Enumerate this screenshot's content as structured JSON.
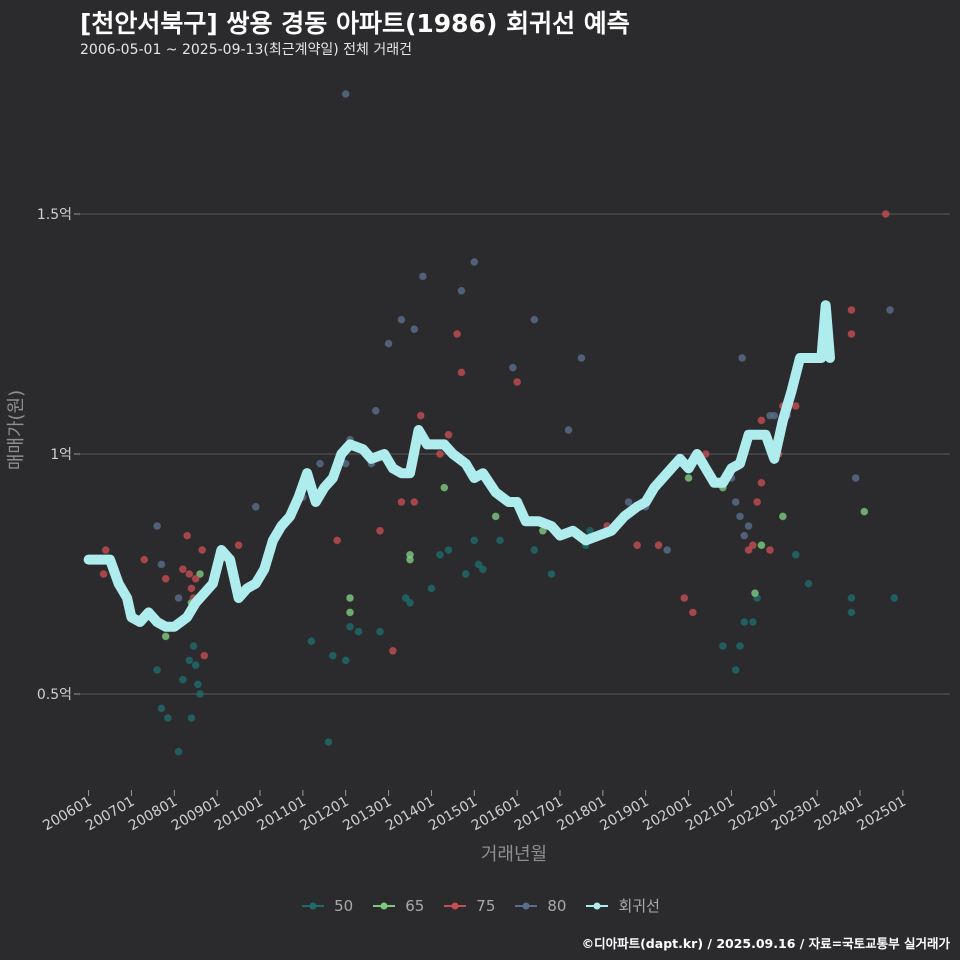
{
  "title": "[천안서북구] 쌍용 경동 아파트(1986) 회귀선 예측",
  "subtitle": "2006-05-01 ~ 2025-09-13(최근계약일) 전체 거래건",
  "caption": "©디아파트(dapt.kr) / 2025.09.16 / 자료=국토교통부 실거래가",
  "chart_data": {
    "type": "scatter",
    "xlabel": "거래년월",
    "ylabel": "매매가(원)",
    "x_ticks": [
      "200601",
      "200701",
      "200801",
      "200901",
      "201001",
      "201101",
      "201201",
      "201301",
      "201401",
      "201501",
      "201601",
      "201701",
      "201801",
      "201901",
      "202001",
      "202101",
      "202201",
      "202301",
      "202401",
      "202501"
    ],
    "y_ticks": [
      {
        "value": 0.5,
        "label": "0.5억"
      },
      {
        "value": 1.0,
        "label": "1억"
      },
      {
        "value": 1.5,
        "label": "1.5억"
      }
    ],
    "xlim": [
      2005.8,
      2026.1
    ],
    "ylim": [
      0.3,
      1.8
    ],
    "grid": "horizontal",
    "legend_position": "bottom",
    "series": [
      {
        "name": "50",
        "color": "#1f6b6b",
        "points": [
          [
            2007.6,
            0.55
          ],
          [
            2007.7,
            0.47
          ],
          [
            2007.85,
            0.45
          ],
          [
            2008.1,
            0.38
          ],
          [
            2008.2,
            0.53
          ],
          [
            2008.4,
            0.45
          ],
          [
            2008.5,
            0.56
          ],
          [
            2008.45,
            0.6
          ],
          [
            2008.55,
            0.52
          ],
          [
            2008.6,
            0.5
          ],
          [
            2008.35,
            0.57
          ],
          [
            2011.2,
            0.61
          ],
          [
            2011.6,
            0.4
          ],
          [
            2011.7,
            0.58
          ],
          [
            2012.0,
            0.57
          ],
          [
            2012.1,
            0.64
          ],
          [
            2012.3,
            0.63
          ],
          [
            2012.8,
            0.63
          ],
          [
            2013.4,
            0.7
          ],
          [
            2013.5,
            0.69
          ],
          [
            2014.0,
            0.72
          ],
          [
            2014.2,
            0.79
          ],
          [
            2014.4,
            0.8
          ],
          [
            2014.8,
            0.75
          ],
          [
            2015.0,
            0.82
          ],
          [
            2015.1,
            0.77
          ],
          [
            2015.2,
            0.76
          ],
          [
            2015.6,
            0.82
          ],
          [
            2016.4,
            0.8
          ],
          [
            2016.8,
            0.75
          ],
          [
            2017.6,
            0.81
          ],
          [
            2017.7,
            0.84
          ],
          [
            2020.8,
            0.6
          ],
          [
            2021.1,
            0.55
          ],
          [
            2021.2,
            0.6
          ],
          [
            2021.3,
            0.65
          ],
          [
            2021.5,
            0.65
          ],
          [
            2021.6,
            0.7
          ],
          [
            2022.5,
            0.79
          ],
          [
            2022.8,
            0.73
          ],
          [
            2023.8,
            0.7
          ],
          [
            2023.8,
            0.67
          ],
          [
            2024.8,
            0.7
          ]
        ]
      },
      {
        "name": "65",
        "color": "#7fc97f",
        "points": [
          [
            2007.8,
            0.62
          ],
          [
            2008.4,
            0.69
          ],
          [
            2008.6,
            0.75
          ],
          [
            2012.1,
            0.7
          ],
          [
            2012.1,
            0.67
          ],
          [
            2013.5,
            0.79
          ],
          [
            2013.5,
            0.78
          ],
          [
            2014.3,
            0.93
          ],
          [
            2015.5,
            0.87
          ],
          [
            2016.6,
            0.84
          ],
          [
            2020.0,
            0.95
          ],
          [
            2020.8,
            0.93
          ],
          [
            2021.55,
            0.71
          ],
          [
            2021.7,
            0.81
          ],
          [
            2022.2,
            0.87
          ],
          [
            2024.1,
            0.88
          ]
        ]
      },
      {
        "name": "75",
        "color": "#c44e52",
        "points": [
          [
            2006.35,
            0.75
          ],
          [
            2006.4,
            0.8
          ],
          [
            2007.3,
            0.78
          ],
          [
            2007.8,
            0.74
          ],
          [
            2008.2,
            0.76
          ],
          [
            2008.3,
            0.83
          ],
          [
            2008.35,
            0.75
          ],
          [
            2008.4,
            0.72
          ],
          [
            2008.45,
            0.7
          ],
          [
            2008.5,
            0.74
          ],
          [
            2008.65,
            0.8
          ],
          [
            2008.7,
            0.58
          ],
          [
            2009.5,
            0.81
          ],
          [
            2011.8,
            0.82
          ],
          [
            2012.8,
            0.84
          ],
          [
            2013.1,
            0.59
          ],
          [
            2013.3,
            0.9
          ],
          [
            2013.6,
            0.9
          ],
          [
            2013.75,
            1.08
          ],
          [
            2014.2,
            1.0
          ],
          [
            2014.4,
            1.04
          ],
          [
            2014.6,
            1.25
          ],
          [
            2014.7,
            1.17
          ],
          [
            2016.0,
            1.15
          ],
          [
            2018.1,
            0.85
          ],
          [
            2018.8,
            0.81
          ],
          [
            2019.3,
            0.81
          ],
          [
            2019.9,
            0.7
          ],
          [
            2020.1,
            0.67
          ],
          [
            2020.4,
            1.0
          ],
          [
            2021.3,
            1.0
          ],
          [
            2021.4,
            0.8
          ],
          [
            2021.5,
            0.81
          ],
          [
            2021.6,
            0.9
          ],
          [
            2021.7,
            1.07
          ],
          [
            2021.7,
            0.94
          ],
          [
            2021.9,
            0.8
          ],
          [
            2022.1,
            1.0
          ],
          [
            2022.2,
            1.1
          ],
          [
            2022.5,
            1.1
          ],
          [
            2022.6,
            1.2
          ],
          [
            2023.8,
            1.3
          ],
          [
            2023.8,
            1.25
          ],
          [
            2024.6,
            1.5
          ]
        ]
      },
      {
        "name": "80",
        "color": "#5a6e8c",
        "points": [
          [
            2007.6,
            0.85
          ],
          [
            2007.7,
            0.77
          ],
          [
            2008.1,
            0.7
          ],
          [
            2009.9,
            0.89
          ],
          [
            2011.0,
            0.91
          ],
          [
            2011.4,
            0.98
          ],
          [
            2011.5,
            0.93
          ],
          [
            2012.0,
            0.98
          ],
          [
            2012.0,
            1.75
          ],
          [
            2012.1,
            1.03
          ],
          [
            2012.6,
            0.98
          ],
          [
            2012.7,
            1.09
          ],
          [
            2013.0,
            1.23
          ],
          [
            2013.3,
            1.28
          ],
          [
            2013.6,
            1.26
          ],
          [
            2013.8,
            1.37
          ],
          [
            2014.7,
            1.34
          ],
          [
            2015.0,
            1.4
          ],
          [
            2015.9,
            1.18
          ],
          [
            2016.4,
            1.28
          ],
          [
            2017.2,
            1.05
          ],
          [
            2017.5,
            1.2
          ],
          [
            2018.6,
            0.9
          ],
          [
            2019.0,
            0.89
          ],
          [
            2019.5,
            0.8
          ],
          [
            2021.0,
            0.95
          ],
          [
            2021.1,
            0.9
          ],
          [
            2021.2,
            0.87
          ],
          [
            2021.25,
            1.2
          ],
          [
            2021.3,
            0.83
          ],
          [
            2021.4,
            0.85
          ],
          [
            2021.9,
            1.08
          ],
          [
            2022.0,
            1.08
          ],
          [
            2022.3,
            1.08
          ],
          [
            2023.9,
            0.95
          ],
          [
            2024.7,
            1.3
          ]
        ]
      }
    ],
    "regression": {
      "name": "회귀선",
      "color": "#aeeced",
      "points": [
        [
          2006.0,
          0.78
        ],
        [
          2006.5,
          0.78
        ],
        [
          2006.7,
          0.73
        ],
        [
          2006.9,
          0.7
        ],
        [
          2007.0,
          0.66
        ],
        [
          2007.2,
          0.65
        ],
        [
          2007.4,
          0.67
        ],
        [
          2007.6,
          0.65
        ],
        [
          2007.8,
          0.64
        ],
        [
          2008.0,
          0.64
        ],
        [
          2008.3,
          0.66
        ],
        [
          2008.5,
          0.69
        ],
        [
          2008.7,
          0.71
        ],
        [
          2008.9,
          0.73
        ],
        [
          2009.1,
          0.8
        ],
        [
          2009.3,
          0.78
        ],
        [
          2009.5,
          0.7
        ],
        [
          2009.7,
          0.72
        ],
        [
          2009.9,
          0.73
        ],
        [
          2010.1,
          0.76
        ],
        [
          2010.3,
          0.82
        ],
        [
          2010.5,
          0.85
        ],
        [
          2010.7,
          0.87
        ],
        [
          2010.9,
          0.91
        ],
        [
          2011.1,
          0.96
        ],
        [
          2011.3,
          0.9
        ],
        [
          2011.5,
          0.93
        ],
        [
          2011.7,
          0.95
        ],
        [
          2011.9,
          1.0
        ],
        [
          2012.1,
          1.02
        ],
        [
          2012.4,
          1.01
        ],
        [
          2012.6,
          0.99
        ],
        [
          2012.9,
          1.0
        ],
        [
          2013.1,
          0.97
        ],
        [
          2013.3,
          0.96
        ],
        [
          2013.5,
          0.96
        ],
        [
          2013.7,
          1.05
        ],
        [
          2013.9,
          1.02
        ],
        [
          2014.1,
          1.02
        ],
        [
          2014.3,
          1.02
        ],
        [
          2014.5,
          1.0
        ],
        [
          2014.8,
          0.98
        ],
        [
          2015.0,
          0.95
        ],
        [
          2015.2,
          0.96
        ],
        [
          2015.5,
          0.92
        ],
        [
          2015.8,
          0.9
        ],
        [
          2016.0,
          0.9
        ],
        [
          2016.2,
          0.86
        ],
        [
          2016.5,
          0.86
        ],
        [
          2016.8,
          0.85
        ],
        [
          2017.0,
          0.83
        ],
        [
          2017.3,
          0.84
        ],
        [
          2017.6,
          0.82
        ],
        [
          2017.9,
          0.83
        ],
        [
          2018.2,
          0.84
        ],
        [
          2018.5,
          0.87
        ],
        [
          2018.8,
          0.89
        ],
        [
          2019.0,
          0.9
        ],
        [
          2019.2,
          0.93
        ],
        [
          2019.5,
          0.96
        ],
        [
          2019.7,
          0.98
        ],
        [
          2019.8,
          0.99
        ],
        [
          2020.0,
          0.97
        ],
        [
          2020.2,
          1.0
        ],
        [
          2020.4,
          0.97
        ],
        [
          2020.6,
          0.94
        ],
        [
          2020.8,
          0.94
        ],
        [
          2021.0,
          0.97
        ],
        [
          2021.2,
          0.98
        ],
        [
          2021.4,
          1.04
        ],
        [
          2021.6,
          1.04
        ],
        [
          2021.8,
          1.04
        ],
        [
          2022.0,
          0.99
        ],
        [
          2022.2,
          1.07
        ],
        [
          2022.4,
          1.13
        ],
        [
          2022.6,
          1.2
        ],
        [
          2022.8,
          1.2
        ],
        [
          2023.0,
          1.2
        ],
        [
          2023.1,
          1.2
        ],
        [
          2023.2,
          1.31
        ],
        [
          2023.3,
          1.2
        ]
      ]
    }
  }
}
